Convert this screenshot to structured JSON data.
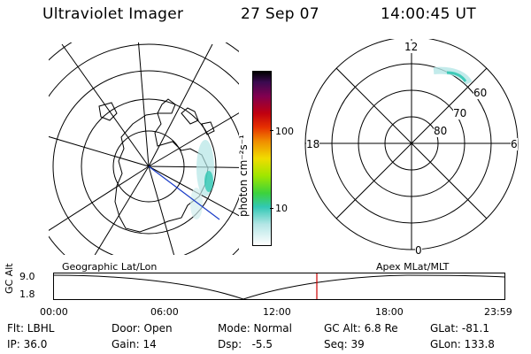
{
  "header": {
    "instrument": "Ultraviolet Imager",
    "date": "27 Sep 07",
    "time": "14:00:45 UT"
  },
  "colorbar": {
    "unit_label": "photon cm⁻²s⁻¹",
    "ticks": [
      "100",
      "10"
    ],
    "colors": [
      "#000000",
      "#5a0a5a",
      "#b40014",
      "#e62800",
      "#f08c00",
      "#f0dc00",
      "#a0e600",
      "#3cd23c",
      "#32c8b4",
      "#b4e6e6",
      "#ffffff"
    ]
  },
  "polar_plot": {
    "mlt_labels": {
      "top": "12",
      "left": "18",
      "right": "6",
      "bottom": "0"
    },
    "lat_labels": [
      "60",
      "70",
      "80"
    ]
  },
  "timeline": {
    "left_title": "Geographic Lat/Lon",
    "right_title": "Apex MLat/MLT",
    "y_axis_label": "GC Alt",
    "y_ticks": [
      "9.0",
      "1.8"
    ],
    "x_ticks": [
      "00:00",
      "06:00",
      "12:00",
      "18:00",
      "23:59"
    ],
    "current_time_marker_color": "#cc0000"
  },
  "info": {
    "filter": "Flt: LBHL",
    "ip": "IP: 36.0",
    "door": "Door: Open",
    "gain": "Gain: 14",
    "mode": "Mode: Normal",
    "dsp": "Dsp:   -5.5",
    "gc_alt": "GC Alt: 6.8 Re",
    "seq": "Seq: 39",
    "glat": "GLat: -81.1",
    "glon": "GLon: 133.8"
  }
}
